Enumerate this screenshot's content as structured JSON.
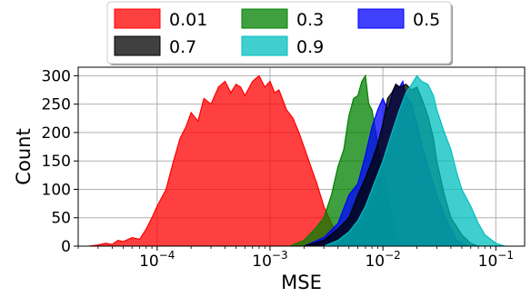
{
  "chart_data": {
    "type": "area",
    "xlabel": "MSE",
    "ylabel": "Count",
    "xscale": "log",
    "xlim": [
      2e-05,
      0.18
    ],
    "ylim": [
      0,
      315
    ],
    "x_ticks": [
      {
        "value": 0.0001,
        "base": "10",
        "exp": "−4"
      },
      {
        "value": 0.001,
        "base": "10",
        "exp": "−3"
      },
      {
        "value": 0.01,
        "base": "10",
        "exp": "−2"
      },
      {
        "value": 0.1,
        "base": "10",
        "exp": "−1"
      }
    ],
    "y_ticks": [
      0,
      50,
      100,
      150,
      200,
      250,
      300
    ],
    "grid": true,
    "legend": {
      "placement": "top-center",
      "columns": 3
    },
    "series": [
      {
        "name": "0.01",
        "color": "#ff0000",
        "fill_opacity": 0.75,
        "x": [
          2.5e-05,
          3e-05,
          3.5e-05,
          4e-05,
          4.5e-05,
          5e-05,
          6e-05,
          7e-05,
          8e-05,
          9e-05,
          0.0001,
          0.00012,
          0.00014,
          0.00016,
          0.00018,
          0.0002,
          0.00023,
          0.00026,
          0.0003,
          0.00035,
          0.0004,
          0.00045,
          0.0005,
          0.00055,
          0.0006,
          0.0007,
          0.0008,
          0.0009,
          0.001,
          0.0011,
          0.0012,
          0.0014,
          0.0016,
          0.0018,
          0.002,
          0.0023,
          0.0026,
          0.003,
          0.0035,
          0.004,
          0.0045,
          0.005,
          0.006,
          0.007,
          0.008
        ],
        "y": [
          0,
          2,
          5,
          3,
          10,
          8,
          15,
          12,
          30,
          50,
          70,
          100,
          150,
          190,
          210,
          235,
          220,
          260,
          250,
          280,
          290,
          270,
          285,
          280,
          265,
          290,
          300,
          280,
          290,
          270,
          275,
          240,
          225,
          200,
          175,
          140,
          110,
          70,
          40,
          20,
          10,
          5,
          2,
          1,
          0
        ]
      },
      {
        "name": "0.3",
        "color": "#008000",
        "fill_opacity": 0.75,
        "x": [
          0.0015,
          0.002,
          0.0025,
          0.003,
          0.0035,
          0.004,
          0.0045,
          0.005,
          0.0055,
          0.006,
          0.0065,
          0.007,
          0.0075,
          0.008,
          0.009,
          0.01,
          0.011,
          0.012,
          0.013,
          0.014,
          0.015
        ],
        "y": [
          0,
          10,
          30,
          50,
          90,
          140,
          170,
          230,
          260,
          265,
          290,
          300,
          250,
          240,
          180,
          130,
          90,
          50,
          20,
          5,
          0
        ]
      },
      {
        "name": "0.5",
        "color": "#0000ff",
        "fill_opacity": 0.75,
        "x": [
          0.002,
          0.003,
          0.004,
          0.005,
          0.006,
          0.007,
          0.008,
          0.009,
          0.01,
          0.011,
          0.012,
          0.013,
          0.014,
          0.015,
          0.016,
          0.018,
          0.02,
          0.022,
          0.025,
          0.03,
          0.035,
          0.04,
          0.045,
          0.05,
          0.06
        ],
        "y": [
          0,
          15,
          40,
          90,
          110,
          160,
          210,
          240,
          260,
          240,
          265,
          285,
          280,
          290,
          265,
          250,
          215,
          180,
          140,
          90,
          55,
          30,
          10,
          5,
          0
        ]
      },
      {
        "name": "0.7",
        "color": "#000000",
        "fill_opacity": 0.75,
        "x": [
          0.002,
          0.003,
          0.004,
          0.005,
          0.006,
          0.007,
          0.008,
          0.009,
          0.01,
          0.011,
          0.012,
          0.013,
          0.014,
          0.016,
          0.018,
          0.02,
          0.022,
          0.025,
          0.028,
          0.03,
          0.035,
          0.04,
          0.05,
          0.06,
          0.07
        ],
        "y": [
          0,
          10,
          30,
          50,
          90,
          120,
          150,
          180,
          215,
          260,
          270,
          285,
          280,
          285,
          275,
          280,
          260,
          230,
          190,
          150,
          90,
          50,
          20,
          5,
          0
        ]
      },
      {
        "name": "0.9",
        "color": "#00bfbf",
        "fill_opacity": 0.75,
        "x": [
          0.003,
          0.004,
          0.005,
          0.006,
          0.007,
          0.008,
          0.01,
          0.012,
          0.014,
          0.016,
          0.018,
          0.02,
          0.022,
          0.025,
          0.028,
          0.03,
          0.035,
          0.04,
          0.045,
          0.05,
          0.06,
          0.07,
          0.08,
          0.1,
          0.12
        ],
        "y": [
          0,
          10,
          25,
          45,
          70,
          100,
          150,
          200,
          240,
          270,
          285,
          300,
          290,
          285,
          265,
          240,
          200,
          170,
          130,
          100,
          70,
          40,
          20,
          5,
          0
        ]
      }
    ]
  }
}
